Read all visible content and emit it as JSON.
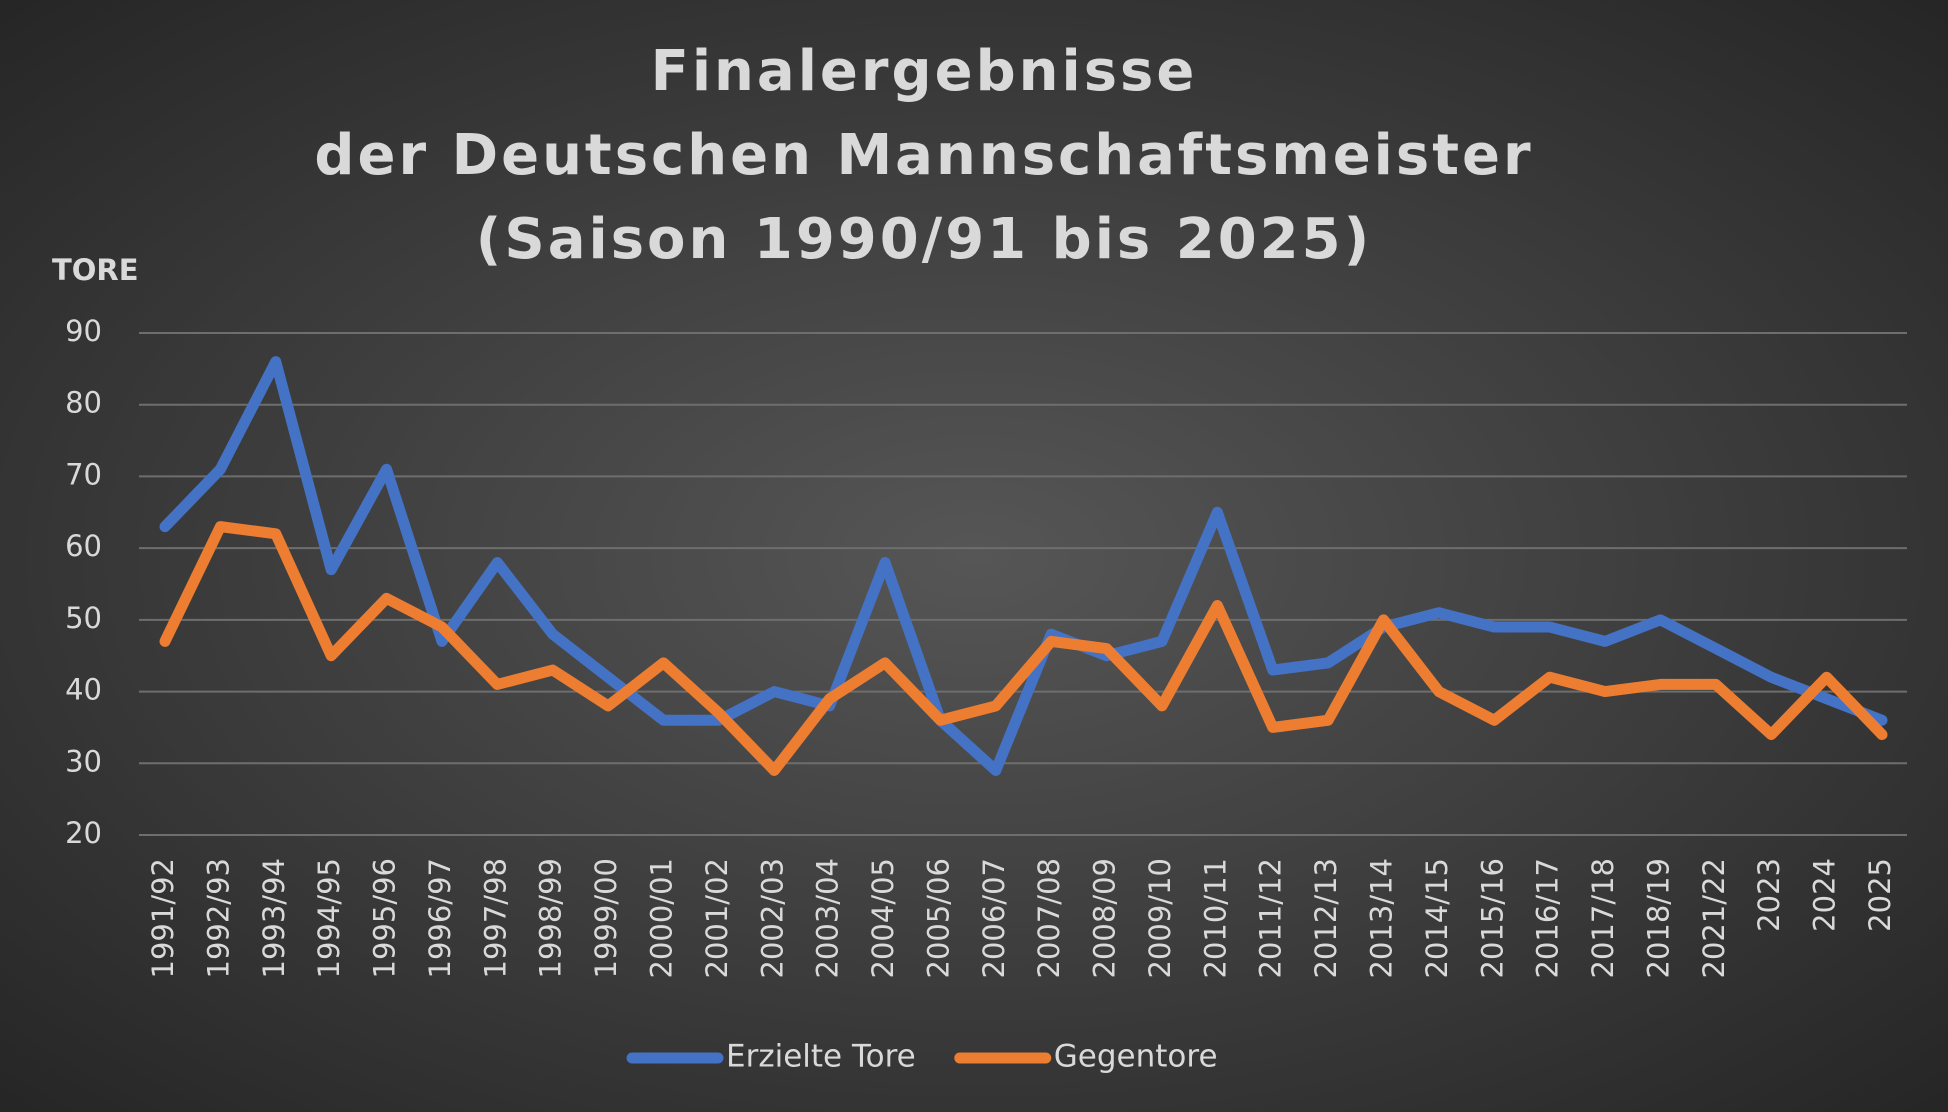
{
  "chart_data": {
    "type": "line",
    "title": [
      "Finalergebnisse",
      "der Deutschen Mannschaftsmeister",
      "(Saison 1990/91 bis 2025)"
    ],
    "y_label": "TORE",
    "categories": [
      "1991/92",
      "1992/93",
      "1993/94",
      "1994/95",
      "1995/96",
      "1996/97",
      "1997/98",
      "1998/99",
      "1999/00",
      "2000/01",
      "2001/02",
      "2002/03",
      "2003/04",
      "2004/05",
      "2005/06",
      "2006/07",
      "2007/08",
      "2008/09",
      "2009/10",
      "2010/11",
      "2011/12",
      "2012/13",
      "2013/14",
      "2014/15",
      "2015/16",
      "2016/17",
      "2017/18",
      "2018/19",
      "2021/22",
      "2023",
      "2024",
      "2025"
    ],
    "series": [
      {
        "name": "Erzielte Tore",
        "color": "#4472c4",
        "values": [
          63,
          71,
          86,
          57,
          71,
          47,
          58,
          48,
          42,
          36,
          36,
          40,
          38,
          58,
          36,
          29,
          48,
          45,
          47,
          65,
          43,
          44,
          49,
          51,
          49,
          49,
          47,
          50,
          46,
          42,
          39,
          36
        ]
      },
      {
        "name": "Gegentore",
        "color": "#ed7d31",
        "values": [
          47,
          63,
          62,
          45,
          53,
          49,
          41,
          43,
          38,
          44,
          37,
          29,
          39,
          44,
          36,
          38,
          47,
          46,
          38,
          52,
          35,
          36,
          50,
          40,
          36,
          42,
          40,
          41,
          41,
          34,
          42,
          34
        ]
      }
    ],
    "ylim": [
      20,
      90
    ],
    "yticks": [
      20,
      30,
      40,
      50,
      60,
      70,
      80,
      90
    ],
    "grid": true,
    "legend": "bottom"
  }
}
